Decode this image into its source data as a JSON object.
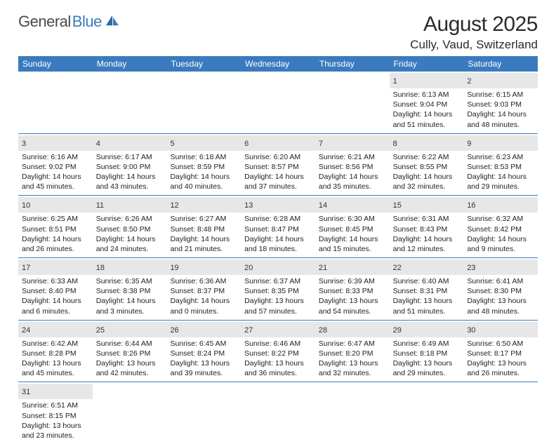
{
  "logo": {
    "general": "General",
    "blue": "Blue"
  },
  "title": "August 2025",
  "location": "Cully, Vaud, Switzerland",
  "colors": {
    "header_bg": "#3a7bbf",
    "header_text": "#ffffff",
    "daynum_bg": "#e7e7e7",
    "cell_border": "#3a7bbf",
    "body_text": "#222222"
  },
  "weekdays": [
    "Sunday",
    "Monday",
    "Tuesday",
    "Wednesday",
    "Thursday",
    "Friday",
    "Saturday"
  ],
  "weeks": [
    [
      {
        "blank": true
      },
      {
        "blank": true
      },
      {
        "blank": true
      },
      {
        "blank": true
      },
      {
        "blank": true
      },
      {
        "num": "1",
        "sunrise": "Sunrise: 6:13 AM",
        "sunset": "Sunset: 9:04 PM",
        "daylight": "Daylight: 14 hours and 51 minutes."
      },
      {
        "num": "2",
        "sunrise": "Sunrise: 6:15 AM",
        "sunset": "Sunset: 9:03 PM",
        "daylight": "Daylight: 14 hours and 48 minutes."
      }
    ],
    [
      {
        "num": "3",
        "sunrise": "Sunrise: 6:16 AM",
        "sunset": "Sunset: 9:02 PM",
        "daylight": "Daylight: 14 hours and 45 minutes."
      },
      {
        "num": "4",
        "sunrise": "Sunrise: 6:17 AM",
        "sunset": "Sunset: 9:00 PM",
        "daylight": "Daylight: 14 hours and 43 minutes."
      },
      {
        "num": "5",
        "sunrise": "Sunrise: 6:18 AM",
        "sunset": "Sunset: 8:59 PM",
        "daylight": "Daylight: 14 hours and 40 minutes."
      },
      {
        "num": "6",
        "sunrise": "Sunrise: 6:20 AM",
        "sunset": "Sunset: 8:57 PM",
        "daylight": "Daylight: 14 hours and 37 minutes."
      },
      {
        "num": "7",
        "sunrise": "Sunrise: 6:21 AM",
        "sunset": "Sunset: 8:56 PM",
        "daylight": "Daylight: 14 hours and 35 minutes."
      },
      {
        "num": "8",
        "sunrise": "Sunrise: 6:22 AM",
        "sunset": "Sunset: 8:55 PM",
        "daylight": "Daylight: 14 hours and 32 minutes."
      },
      {
        "num": "9",
        "sunrise": "Sunrise: 6:23 AM",
        "sunset": "Sunset: 8:53 PM",
        "daylight": "Daylight: 14 hours and 29 minutes."
      }
    ],
    [
      {
        "num": "10",
        "sunrise": "Sunrise: 6:25 AM",
        "sunset": "Sunset: 8:51 PM",
        "daylight": "Daylight: 14 hours and 26 minutes."
      },
      {
        "num": "11",
        "sunrise": "Sunrise: 6:26 AM",
        "sunset": "Sunset: 8:50 PM",
        "daylight": "Daylight: 14 hours and 24 minutes."
      },
      {
        "num": "12",
        "sunrise": "Sunrise: 6:27 AM",
        "sunset": "Sunset: 8:48 PM",
        "daylight": "Daylight: 14 hours and 21 minutes."
      },
      {
        "num": "13",
        "sunrise": "Sunrise: 6:28 AM",
        "sunset": "Sunset: 8:47 PM",
        "daylight": "Daylight: 14 hours and 18 minutes."
      },
      {
        "num": "14",
        "sunrise": "Sunrise: 6:30 AM",
        "sunset": "Sunset: 8:45 PM",
        "daylight": "Daylight: 14 hours and 15 minutes."
      },
      {
        "num": "15",
        "sunrise": "Sunrise: 6:31 AM",
        "sunset": "Sunset: 8:43 PM",
        "daylight": "Daylight: 14 hours and 12 minutes."
      },
      {
        "num": "16",
        "sunrise": "Sunrise: 6:32 AM",
        "sunset": "Sunset: 8:42 PM",
        "daylight": "Daylight: 14 hours and 9 minutes."
      }
    ],
    [
      {
        "num": "17",
        "sunrise": "Sunrise: 6:33 AM",
        "sunset": "Sunset: 8:40 PM",
        "daylight": "Daylight: 14 hours and 6 minutes."
      },
      {
        "num": "18",
        "sunrise": "Sunrise: 6:35 AM",
        "sunset": "Sunset: 8:38 PM",
        "daylight": "Daylight: 14 hours and 3 minutes."
      },
      {
        "num": "19",
        "sunrise": "Sunrise: 6:36 AM",
        "sunset": "Sunset: 8:37 PM",
        "daylight": "Daylight: 14 hours and 0 minutes."
      },
      {
        "num": "20",
        "sunrise": "Sunrise: 6:37 AM",
        "sunset": "Sunset: 8:35 PM",
        "daylight": "Daylight: 13 hours and 57 minutes."
      },
      {
        "num": "21",
        "sunrise": "Sunrise: 6:39 AM",
        "sunset": "Sunset: 8:33 PM",
        "daylight": "Daylight: 13 hours and 54 minutes."
      },
      {
        "num": "22",
        "sunrise": "Sunrise: 6:40 AM",
        "sunset": "Sunset: 8:31 PM",
        "daylight": "Daylight: 13 hours and 51 minutes."
      },
      {
        "num": "23",
        "sunrise": "Sunrise: 6:41 AM",
        "sunset": "Sunset: 8:30 PM",
        "daylight": "Daylight: 13 hours and 48 minutes."
      }
    ],
    [
      {
        "num": "24",
        "sunrise": "Sunrise: 6:42 AM",
        "sunset": "Sunset: 8:28 PM",
        "daylight": "Daylight: 13 hours and 45 minutes."
      },
      {
        "num": "25",
        "sunrise": "Sunrise: 6:44 AM",
        "sunset": "Sunset: 8:26 PM",
        "daylight": "Daylight: 13 hours and 42 minutes."
      },
      {
        "num": "26",
        "sunrise": "Sunrise: 6:45 AM",
        "sunset": "Sunset: 8:24 PM",
        "daylight": "Daylight: 13 hours and 39 minutes."
      },
      {
        "num": "27",
        "sunrise": "Sunrise: 6:46 AM",
        "sunset": "Sunset: 8:22 PM",
        "daylight": "Daylight: 13 hours and 36 minutes."
      },
      {
        "num": "28",
        "sunrise": "Sunrise: 6:47 AM",
        "sunset": "Sunset: 8:20 PM",
        "daylight": "Daylight: 13 hours and 32 minutes."
      },
      {
        "num": "29",
        "sunrise": "Sunrise: 6:49 AM",
        "sunset": "Sunset: 8:18 PM",
        "daylight": "Daylight: 13 hours and 29 minutes."
      },
      {
        "num": "30",
        "sunrise": "Sunrise: 6:50 AM",
        "sunset": "Sunset: 8:17 PM",
        "daylight": "Daylight: 13 hours and 26 minutes."
      }
    ],
    [
      {
        "num": "31",
        "sunrise": "Sunrise: 6:51 AM",
        "sunset": "Sunset: 8:15 PM",
        "daylight": "Daylight: 13 hours and 23 minutes."
      },
      {
        "blank": true
      },
      {
        "blank": true
      },
      {
        "blank": true
      },
      {
        "blank": true
      },
      {
        "blank": true
      },
      {
        "blank": true
      }
    ]
  ]
}
